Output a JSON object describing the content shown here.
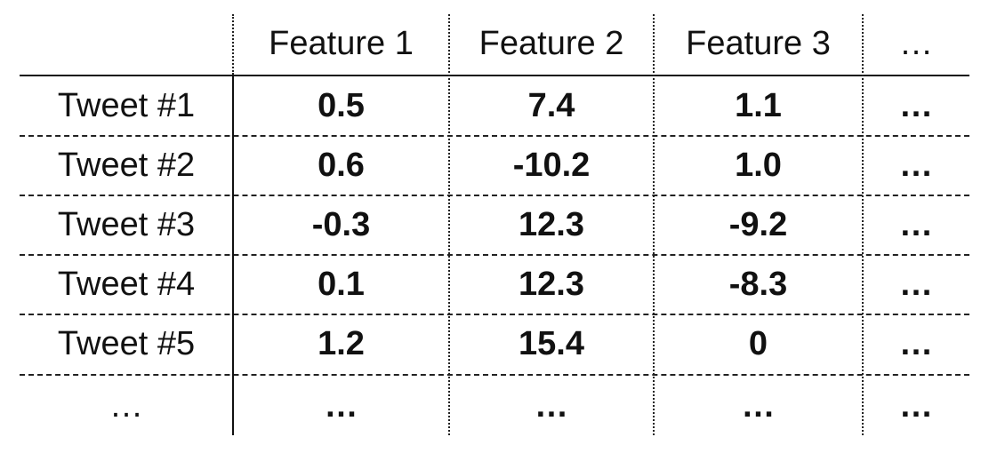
{
  "table": {
    "headers": [
      "",
      "Feature 1",
      "Feature 2",
      "Feature 3",
      "…"
    ],
    "rows": [
      {
        "label": "Tweet #1",
        "values": [
          "0.5",
          "7.4",
          "1.1",
          "…"
        ]
      },
      {
        "label": "Tweet #2",
        "values": [
          "0.6",
          "-10.2",
          "1.0",
          "…"
        ]
      },
      {
        "label": "Tweet #3",
        "values": [
          "-0.3",
          "12.3",
          "-9.2",
          "…"
        ]
      },
      {
        "label": "Tweet #4",
        "values": [
          "0.1",
          "12.3",
          "-8.3",
          "…"
        ]
      },
      {
        "label": "Tweet #5",
        "values": [
          "1.2",
          "15.4",
          "0",
          "…"
        ]
      },
      {
        "label": "…",
        "values": [
          "…",
          "…",
          "…",
          "…"
        ]
      }
    ]
  }
}
